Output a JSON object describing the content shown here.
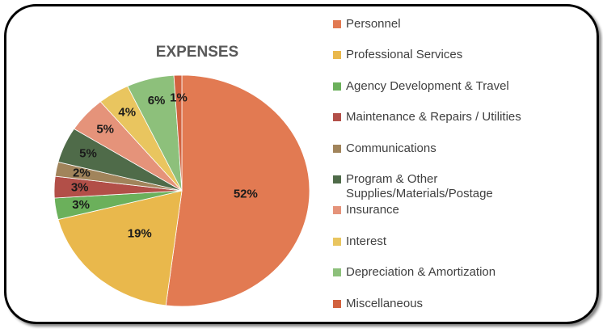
{
  "chart_data": {
    "type": "pie",
    "title": "EXPENSES",
    "categories": [
      "Personnel",
      "Professional Services",
      "Agency Development & Travel",
      "Maintenance & Repairs / Utilities",
      "Communications",
      "Program & Other Supplies/Materials/Postage",
      "Insurance",
      "Interest",
      "Depreciation & Amortization",
      "Miscellaneous"
    ],
    "values": [
      52,
      19,
      3,
      3,
      2,
      5,
      5,
      4,
      6,
      1
    ],
    "value_labels": [
      "52%",
      "19%",
      "3%",
      "3%",
      "2%",
      "5%",
      "5%",
      "4%",
      "6%",
      "1%"
    ],
    "colors": [
      "#e27a52",
      "#e9b84c",
      "#6bb05b",
      "#b24f48",
      "#a1845b",
      "#4f6b49",
      "#e5937a",
      "#e9c55f",
      "#8dc07b",
      "#d2623f"
    ],
    "legend": "right"
  }
}
